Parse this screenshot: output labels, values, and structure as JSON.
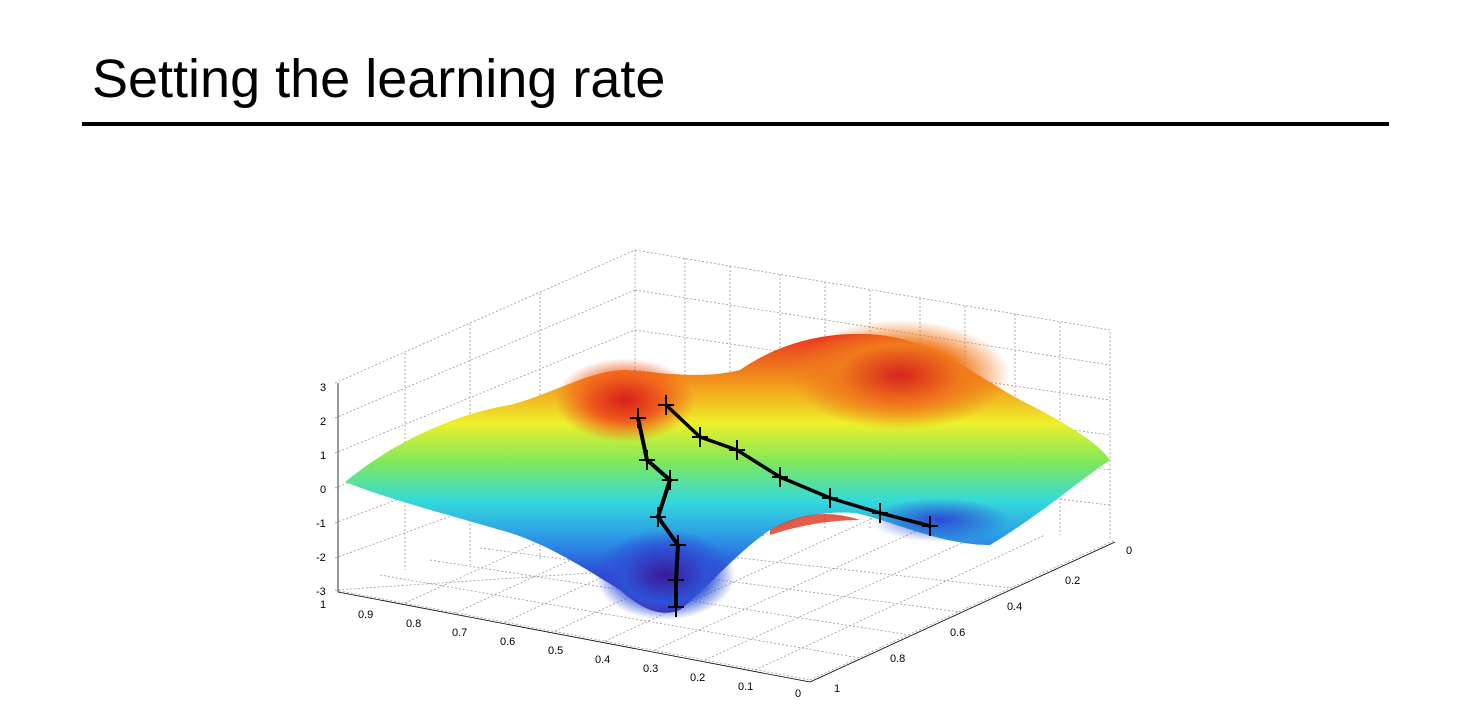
{
  "slide": {
    "title": "Setting the learning rate"
  },
  "chart_data": {
    "type": "surface",
    "title": "",
    "xlabel": "",
    "ylabel": "",
    "zlabel": "",
    "x_ticks": [
      "1",
      "0.9",
      "0.8",
      "0.7",
      "0.6",
      "0.5",
      "0.4",
      "0.3",
      "0.2",
      "0.1",
      "0"
    ],
    "y_ticks": [
      "0",
      "0.2",
      "0.4",
      "0.6",
      "0.8",
      "1"
    ],
    "z_ticks": [
      "3",
      "2",
      "1",
      "0",
      "-1",
      "-2",
      "-3"
    ],
    "xlim": [
      0,
      1
    ],
    "ylim": [
      0,
      1
    ],
    "zlim": [
      -3,
      3
    ],
    "grid": true,
    "colormap": "jet",
    "colors": {
      "low": "#3b1fb0",
      "mid": "#2fd9e0",
      "high": "#e02a1a"
    },
    "paths": [
      {
        "marker": "star",
        "points": 7
      },
      {
        "marker": "star",
        "points": 8
      }
    ]
  }
}
